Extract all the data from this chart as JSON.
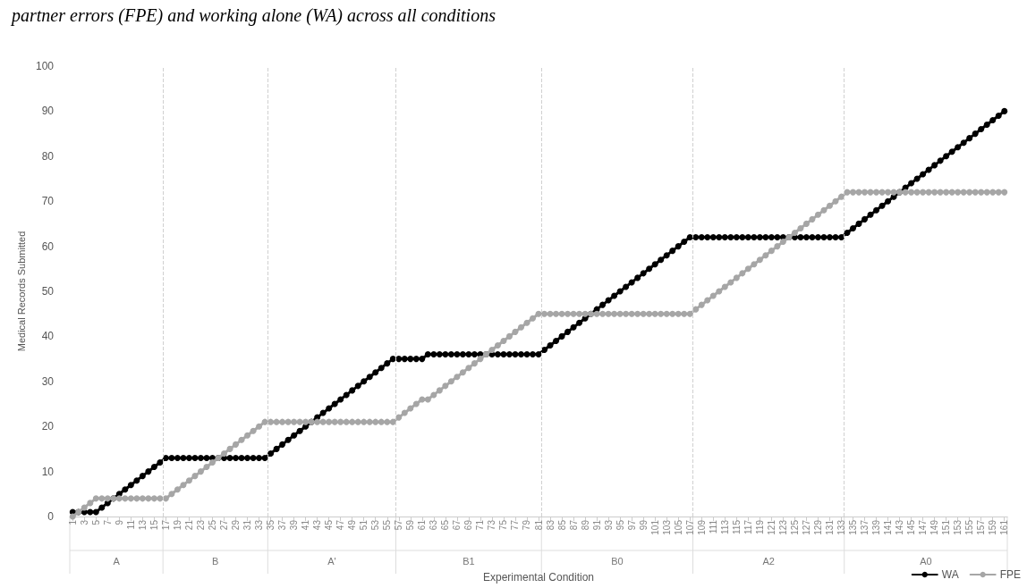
{
  "chart_data": {
    "type": "line",
    "title": "partner errors (FPE) and working alone (WA) across all conditions",
    "xlabel": "Experimental Condition",
    "ylabel": "Medical Records Submitted",
    "x": [
      1,
      2,
      3,
      4,
      5,
      6,
      7,
      8,
      9,
      10,
      11,
      12,
      13,
      14,
      15,
      16,
      17,
      18,
      19,
      20,
      21,
      22,
      23,
      24,
      25,
      26,
      27,
      28,
      29,
      30,
      31,
      32,
      33,
      34,
      35,
      36,
      37,
      38,
      39,
      40,
      41,
      42,
      43,
      44,
      45,
      46,
      47,
      48,
      49,
      50,
      51,
      52,
      53,
      54,
      55,
      56,
      57,
      58,
      59,
      60,
      61,
      62,
      63,
      64,
      65,
      66,
      67,
      68,
      69,
      70,
      71,
      72,
      73,
      74,
      75,
      76,
      77,
      78,
      79,
      80,
      81,
      82,
      83,
      84,
      85,
      86,
      87,
      88,
      89,
      90,
      91,
      92,
      93,
      94,
      95,
      96,
      97,
      98,
      99,
      100,
      101,
      102,
      103,
      104,
      105,
      106,
      107,
      108,
      109,
      110,
      111,
      112,
      113,
      114,
      115,
      116,
      117,
      118,
      119,
      120,
      121,
      122,
      123,
      124,
      125,
      126,
      127,
      128,
      129,
      130,
      131,
      132,
      133,
      134,
      135,
      136,
      137,
      138,
      139,
      140,
      141,
      142,
      143,
      144,
      145,
      146,
      147,
      148,
      149,
      150,
      151,
      152,
      153,
      154,
      155,
      156,
      157,
      158,
      159,
      160,
      161
    ],
    "series": [
      {
        "name": "WA",
        "color": "#000000",
        "values": [
          1,
          1,
          1,
          1,
          1,
          2,
          3,
          4,
          5,
          6,
          7,
          8,
          9,
          10,
          11,
          12,
          13,
          13,
          13,
          13,
          13,
          13,
          13,
          13,
          13,
          13,
          13,
          13,
          13,
          13,
          13,
          13,
          13,
          13,
          14,
          15,
          16,
          17,
          18,
          19,
          20,
          21,
          22,
          23,
          24,
          25,
          26,
          27,
          28,
          29,
          30,
          31,
          32,
          33,
          34,
          35,
          35,
          35,
          35,
          35,
          35,
          36,
          36,
          36,
          36,
          36,
          36,
          36,
          36,
          36,
          36,
          36,
          36,
          36,
          36,
          36,
          36,
          36,
          36,
          36,
          36,
          37,
          38,
          39,
          40,
          41,
          42,
          43,
          44,
          45,
          46,
          47,
          48,
          49,
          50,
          51,
          52,
          53,
          54,
          55,
          56,
          57,
          58,
          59,
          60,
          61,
          62,
          62,
          62,
          62,
          62,
          62,
          62,
          62,
          62,
          62,
          62,
          62,
          62,
          62,
          62,
          62,
          62,
          62,
          62,
          62,
          62,
          62,
          62,
          62,
          62,
          62,
          62,
          63,
          64,
          65,
          66,
          67,
          68,
          69,
          70,
          71,
          72,
          73,
          74,
          75,
          76,
          77,
          78,
          79,
          80,
          81,
          82,
          83,
          84,
          85,
          86,
          87,
          88,
          89,
          90
        ]
      },
      {
        "name": "FPE",
        "color": "#a6a6a6",
        "values": [
          0,
          1,
          2,
          3,
          4,
          4,
          4,
          4,
          4,
          4,
          4,
          4,
          4,
          4,
          4,
          4,
          4,
          5,
          6,
          7,
          8,
          9,
          10,
          11,
          12,
          13,
          14,
          15,
          16,
          17,
          18,
          19,
          20,
          21,
          21,
          21,
          21,
          21,
          21,
          21,
          21,
          21,
          21,
          21,
          21,
          21,
          21,
          21,
          21,
          21,
          21,
          21,
          21,
          21,
          21,
          21,
          22,
          23,
          24,
          25,
          26,
          26,
          27,
          28,
          29,
          30,
          31,
          32,
          33,
          34,
          35,
          36,
          37,
          38,
          39,
          40,
          41,
          42,
          43,
          44,
          45,
          45,
          45,
          45,
          45,
          45,
          45,
          45,
          45,
          45,
          45,
          45,
          45,
          45,
          45,
          45,
          45,
          45,
          45,
          45,
          45,
          45,
          45,
          45,
          45,
          45,
          45,
          46,
          47,
          48,
          49,
          50,
          51,
          52,
          53,
          54,
          55,
          56,
          57,
          58,
          59,
          60,
          61,
          62,
          63,
          64,
          65,
          66,
          67,
          68,
          69,
          70,
          71,
          72,
          72,
          72,
          72,
          72,
          72,
          72,
          72,
          72,
          72,
          72,
          72,
          72,
          72,
          72,
          72,
          72,
          72,
          72,
          72,
          72,
          72,
          72,
          72,
          72,
          72,
          72,
          72
        ]
      }
    ],
    "xlim": [
      0.5,
      161.5
    ],
    "xticks": [
      1,
      3,
      5,
      7,
      9,
      11,
      13,
      15,
      17,
      19,
      21,
      23,
      25,
      27,
      29,
      31,
      33,
      35,
      37,
      39,
      41,
      43,
      45,
      47,
      49,
      51,
      53,
      55,
      57,
      59,
      61,
      63,
      65,
      67,
      69,
      71,
      73,
      75,
      77,
      79,
      81,
      83,
      85,
      87,
      89,
      91,
      93,
      95,
      97,
      99,
      101,
      103,
      105,
      107,
      109,
      111,
      113,
      115,
      117,
      119,
      121,
      123,
      125,
      127,
      129,
      131,
      133,
      135,
      137,
      139,
      141,
      143,
      145,
      147,
      149,
      151,
      153,
      155,
      157,
      159,
      161
    ],
    "ylim": [
      0,
      100
    ],
    "yticks": [
      0,
      10,
      20,
      30,
      40,
      50,
      60,
      70,
      80,
      90,
      100
    ],
    "annotations": [
      "A",
      "B",
      "A'",
      "B1",
      "B0",
      "A2",
      "A0"
    ],
    "ref_lines": [
      {
        "axis": "x",
        "value": 16.5,
        "color": "#d0d0d0",
        "line_style": "dashed"
      },
      {
        "axis": "x",
        "value": 34.5,
        "color": "#d0d0d0",
        "line_style": "dashed"
      },
      {
        "axis": "x",
        "value": 56.5,
        "color": "#d0d0d0",
        "line_style": "dashed"
      },
      {
        "axis": "x",
        "value": 81.5,
        "color": "#d0d0d0",
        "line_style": "dashed"
      },
      {
        "axis": "x",
        "value": 107.5,
        "color": "#d0d0d0",
        "line_style": "dashed"
      },
      {
        "axis": "x",
        "value": 133.5,
        "color": "#d0d0d0",
        "line_style": "dashed"
      }
    ],
    "grid": false,
    "legend": "bottom right",
    "marker": "circle",
    "line_style": "solid"
  }
}
